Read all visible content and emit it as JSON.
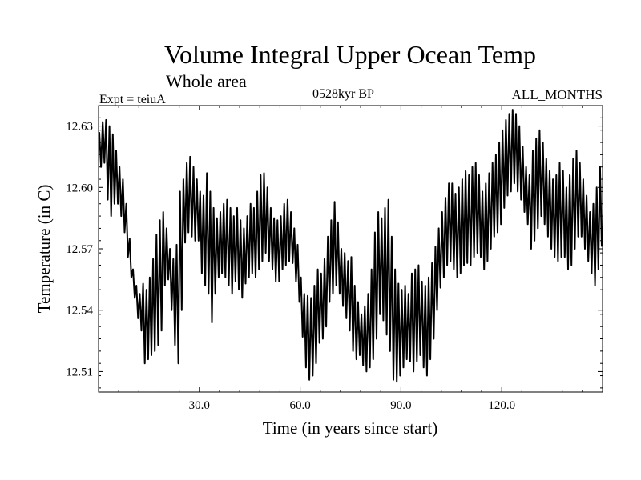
{
  "chart_data": {
    "type": "line",
    "title": "Volume Integral Upper Ocean Temp",
    "subtitle": "Whole area",
    "experiment_label": "Expt = teiuA",
    "period_label": "0528kyr BP",
    "months_label": "ALL_MONTHS",
    "xlabel": "Time (in years since start)",
    "ylabel": "Temperature (in C)",
    "xlim": [
      0,
      150
    ],
    "ylim": [
      12.5,
      12.64
    ],
    "x_ticks": [
      30,
      60,
      90,
      120
    ],
    "x_tick_labels": [
      "30.0",
      "60.0",
      "90.0",
      "120.0"
    ],
    "y_ticks": [
      12.51,
      12.54,
      12.57,
      12.6,
      12.63
    ],
    "y_tick_labels": [
      "12.51",
      "12.54",
      "12.57",
      "12.60",
      "12.63"
    ],
    "grid": false,
    "series": [
      {
        "name": "Temperature",
        "sampling": "annual cycle: upper and lower envelope per year",
        "color": "#000000",
        "x": [
          0.5,
          1.5,
          2.5,
          3.5,
          4.5,
          5.5,
          6.5,
          7.5,
          8.5,
          9.5,
          10.5,
          11.5,
          12.5,
          13.5,
          14.5,
          15.5,
          16.5,
          17.5,
          18.5,
          19.5,
          20.5,
          21.5,
          22.5,
          23.5,
          24.5,
          25.5,
          26.5,
          27.5,
          28.5,
          29.5,
          30.5,
          31.5,
          32.5,
          33.5,
          34.5,
          35.5,
          36.5,
          37.5,
          38.5,
          39.5,
          40.5,
          41.5,
          42.5,
          43.5,
          44.5,
          45.5,
          46.5,
          47.5,
          48.5,
          49.5,
          50.5,
          51.5,
          52.5,
          53.5,
          54.5,
          55.5,
          56.5,
          57.5,
          58.5,
          59.5,
          60.5,
          61.5,
          62.5,
          63.5,
          64.5,
          65.5,
          66.5,
          67.5,
          68.5,
          69.5,
          70.5,
          71.5,
          72.5,
          73.5,
          74.5,
          75.5,
          76.5,
          77.5,
          78.5,
          79.5,
          80.5,
          81.5,
          82.5,
          83.5,
          84.5,
          85.5,
          86.5,
          87.5,
          88.5,
          89.5,
          90.5,
          91.5,
          92.5,
          93.5,
          94.5,
          95.5,
          96.5,
          97.5,
          98.5,
          99.5,
          100.5,
          101.5,
          102.5,
          103.5,
          104.5,
          105.5,
          106.5,
          107.5,
          108.5,
          109.5,
          110.5,
          111.5,
          112.5,
          113.5,
          114.5,
          115.5,
          116.5,
          117.5,
          118.5,
          119.5,
          120.5,
          121.5,
          122.5,
          123.5,
          124.5,
          125.5,
          126.5,
          127.5,
          128.5,
          129.5,
          130.5,
          131.5,
          132.5,
          133.5,
          134.5,
          135.5,
          136.5,
          137.5,
          138.5,
          139.5,
          140.5,
          141.5,
          142.5,
          143.5,
          144.5,
          145.5,
          146.5,
          147.5,
          148.5,
          149.5
        ],
        "upper": [
          12.627,
          12.632,
          12.633,
          12.63,
          12.626,
          12.618,
          12.61,
          12.604,
          12.592,
          12.575,
          12.56,
          12.552,
          12.548,
          12.553,
          12.55,
          12.556,
          12.565,
          12.577,
          12.584,
          12.588,
          12.58,
          12.57,
          12.565,
          12.572,
          12.598,
          12.604,
          12.612,
          12.615,
          12.61,
          12.604,
          12.598,
          12.596,
          12.607,
          12.598,
          12.59,
          12.585,
          12.588,
          12.592,
          12.594,
          12.59,
          12.586,
          12.59,
          12.584,
          12.58,
          12.586,
          12.592,
          12.59,
          12.598,
          12.606,
          12.607,
          12.6,
          12.59,
          12.585,
          12.584,
          12.586,
          12.592,
          12.594,
          12.588,
          12.58,
          12.572,
          12.556,
          12.548,
          12.547,
          12.546,
          12.552,
          12.56,
          12.558,
          12.565,
          12.576,
          12.584,
          12.593,
          12.583,
          12.57,
          12.568,
          12.564,
          12.566,
          12.552,
          12.544,
          12.538,
          12.542,
          12.548,
          12.56,
          12.578,
          12.588,
          12.585,
          12.59,
          12.594,
          12.576,
          12.56,
          12.553,
          12.55,
          12.552,
          12.548,
          12.558,
          12.56,
          12.562,
          12.554,
          12.552,
          12.556,
          12.563,
          12.571,
          12.58,
          12.588,
          12.595,
          12.602,
          12.602,
          12.597,
          12.6,
          12.604,
          12.608,
          12.606,
          12.61,
          12.612,
          12.606,
          12.598,
          12.602,
          12.607,
          12.612,
          12.616,
          12.622,
          12.628,
          12.633,
          12.636,
          12.638,
          12.636,
          12.63,
          12.62,
          12.61,
          12.606,
          12.618,
          12.624,
          12.628,
          12.622,
          12.614,
          12.608,
          12.604,
          12.606,
          12.612,
          12.608,
          12.6,
          12.606,
          12.614,
          12.618,
          12.612,
          12.604,
          12.596,
          12.588,
          12.592,
          12.6,
          12.61
        ],
        "lower": [
          12.61,
          12.612,
          12.594,
          12.586,
          12.592,
          12.592,
          12.586,
          12.578,
          12.566,
          12.556,
          12.546,
          12.536,
          12.53,
          12.514,
          12.516,
          12.518,
          12.52,
          12.523,
          12.53,
          12.552,
          12.555,
          12.54,
          12.523,
          12.514,
          12.54,
          12.573,
          12.578,
          12.576,
          12.574,
          12.574,
          12.558,
          12.552,
          12.548,
          12.534,
          12.548,
          12.556,
          12.558,
          12.556,
          12.552,
          12.548,
          12.554,
          12.55,
          12.546,
          12.553,
          12.556,
          12.558,
          12.556,
          12.56,
          12.564,
          12.568,
          12.564,
          12.56,
          12.554,
          12.554,
          12.56,
          12.562,
          12.564,
          12.563,
          12.554,
          12.544,
          12.527,
          12.512,
          12.506,
          12.508,
          12.514,
          12.524,
          12.526,
          12.532,
          12.544,
          12.548,
          12.552,
          12.548,
          12.542,
          12.536,
          12.53,
          12.52,
          12.516,
          12.518,
          12.513,
          12.51,
          12.512,
          12.516,
          12.526,
          12.538,
          12.535,
          12.528,
          12.52,
          12.506,
          12.505,
          12.508,
          12.512,
          12.516,
          12.515,
          12.51,
          12.515,
          12.518,
          12.512,
          12.508,
          12.516,
          12.526,
          12.54,
          12.551,
          12.556,
          12.562,
          12.564,
          12.56,
          12.556,
          12.558,
          12.562,
          12.563,
          12.562,
          12.566,
          12.568,
          12.566,
          12.56,
          12.564,
          12.57,
          12.576,
          12.578,
          12.582,
          12.59,
          12.596,
          12.598,
          12.602,
          12.598,
          12.594,
          12.588,
          12.582,
          12.57,
          12.574,
          12.58,
          12.586,
          12.582,
          12.576,
          12.57,
          12.566,
          12.564,
          12.566,
          12.566,
          12.56,
          12.562,
          12.57,
          12.576,
          12.576,
          12.57,
          12.564,
          12.558,
          12.552,
          12.56,
          12.571
        ]
      }
    ]
  }
}
